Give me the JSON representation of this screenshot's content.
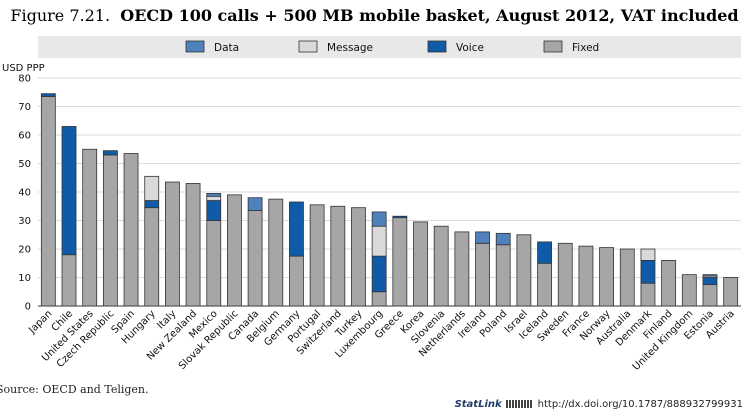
{
  "figure": {
    "label": "Figure 7.21.",
    "title": "OECD 100 calls + 500 MB mobile basket, August 2012, VAT included"
  },
  "source": "Source:  OECD and Teligen.",
  "statlink": {
    "brand": "StatLink",
    "url": "http://dx.doi.org/10.1787/888932799931"
  },
  "colors": {
    "Data": "#4f81bd",
    "Message": "#d9d9d9",
    "Voice": "#0f5ba8",
    "Fixed": "#a6a6a6",
    "legend_band": "#e8e8e8",
    "grid": "#cfcfcf"
  },
  "chart_data": {
    "type": "bar",
    "stacked": true,
    "ylabel": "USD PPP",
    "ylim": [
      0,
      80
    ],
    "yticks": [
      0,
      10,
      20,
      30,
      40,
      50,
      60,
      70,
      80
    ],
    "grid": true,
    "legend_position": "top",
    "categories": [
      "Japan",
      "Chile",
      "United States",
      "Czech Republic",
      "Spain",
      "Hungary",
      "Italy",
      "New Zealand",
      "Mexico",
      "Slovak Republic",
      "Canada",
      "Belgium",
      "Germany",
      "Portugal",
      "Switzerland",
      "Turkey",
      "Luxembourg",
      "Greece",
      "Korea",
      "Slovenia",
      "Netherlands",
      "Ireland",
      "Poland",
      "Israel",
      "Iceland",
      "Sweden",
      "France",
      "Norway",
      "Australia",
      "Denmark",
      "Finland",
      "United Kingdom",
      "Estonia",
      "Austria"
    ],
    "stack_order": [
      "Fixed",
      "Voice",
      "Message",
      "Data"
    ],
    "legend_order": [
      "Data",
      "Message",
      "Voice",
      "Fixed"
    ],
    "series": [
      {
        "name": "Fixed",
        "values": [
          73.5,
          18,
          55,
          53,
          53.5,
          34.5,
          43.5,
          43,
          30,
          39,
          33.5,
          37.5,
          17.5,
          35.5,
          35,
          34.5,
          5,
          31,
          29.5,
          28,
          26,
          22,
          21.5,
          25,
          15,
          22,
          21,
          20.5,
          20,
          8,
          16,
          11,
          7.5,
          10
        ]
      },
      {
        "name": "Voice",
        "values": [
          1,
          45,
          0,
          1.5,
          0,
          2.5,
          0,
          0,
          7,
          0,
          0,
          0,
          19,
          0,
          0,
          0,
          12.5,
          0.5,
          0,
          0,
          0,
          0,
          0,
          0,
          7.5,
          0,
          0,
          0,
          0,
          8,
          0,
          0,
          2.5,
          0
        ]
      },
      {
        "name": "Message",
        "values": [
          0,
          0,
          0,
          0,
          0,
          8.5,
          0,
          0,
          1.5,
          0,
          0,
          0,
          0,
          0,
          0,
          0,
          10.5,
          0,
          0,
          0,
          0,
          0,
          0,
          0,
          0,
          0,
          0,
          0,
          0,
          4,
          0,
          0,
          0.5,
          0
        ]
      },
      {
        "name": "Data",
        "values": [
          0,
          0,
          0,
          0,
          0,
          0,
          0,
          0,
          1,
          0,
          4.5,
          0,
          0,
          0,
          0,
          0,
          5,
          0,
          0,
          0,
          0,
          4,
          4,
          0,
          0,
          0,
          0,
          0,
          0,
          0,
          0,
          0,
          0.5,
          0
        ]
      }
    ]
  }
}
